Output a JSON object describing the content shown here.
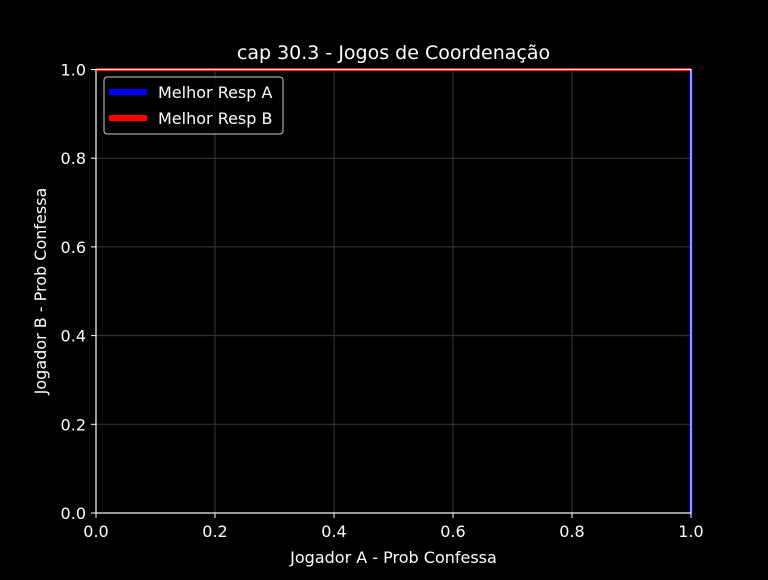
{
  "chart_data": {
    "type": "line",
    "title": "cap 30.3 - Jogos de Coordenação",
    "xlabel": "Jogador A - Prob Confessa",
    "ylabel": "Jogador B - Prob Confessa",
    "xlim": [
      0,
      1
    ],
    "ylim": [
      0,
      1
    ],
    "xticks": [
      "0.0",
      "0.2",
      "0.4",
      "0.6",
      "0.8",
      "1.0"
    ],
    "yticks": [
      "0.0",
      "0.2",
      "0.4",
      "0.6",
      "0.8",
      "1.0"
    ],
    "grid": true,
    "legend_position": "upper-left",
    "series": [
      {
        "name": "Melhor Resp A",
        "color": "#0000ff",
        "points": [
          [
            1,
            0
          ],
          [
            1,
            1
          ]
        ]
      },
      {
        "name": "Melhor Resp B",
        "color": "#ff0000",
        "points": [
          [
            0,
            1
          ],
          [
            1,
            1
          ]
        ]
      }
    ]
  },
  "colors": {
    "background": "#000000",
    "foreground": "#ffffff",
    "grid": "#3a3a3a"
  }
}
